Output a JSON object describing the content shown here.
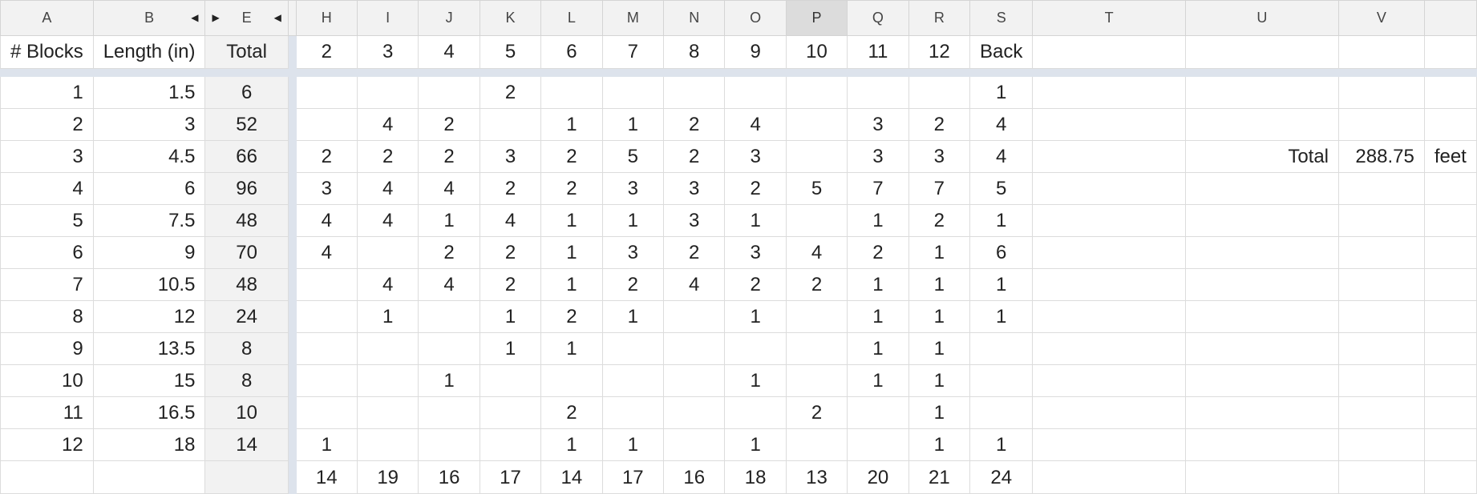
{
  "columns": [
    "A",
    "B",
    "E",
    "H",
    "I",
    "J",
    "K",
    "L",
    "M",
    "N",
    "O",
    "P",
    "Q",
    "R",
    "S",
    "T",
    "U",
    "V"
  ],
  "selected_column": "P",
  "hidden_markers": {
    "collapse_left": "◀",
    "expand_right": "▶"
  },
  "header_row": {
    "a": "# Blocks",
    "b": "Length (in)",
    "e": "Total",
    "cols": [
      "2",
      "3",
      "4",
      "5",
      "6",
      "7",
      "8",
      "9",
      "10",
      "11",
      "12",
      "Back"
    ]
  },
  "rows": [
    {
      "a": "1",
      "b": "1.5",
      "e": "6",
      "cols": [
        "",
        "",
        "",
        "2",
        "",
        "",
        "",
        "",
        "",
        "",
        "",
        "1"
      ]
    },
    {
      "a": "2",
      "b": "3",
      "e": "52",
      "cols": [
        "",
        "4",
        "2",
        "",
        "1",
        "1",
        "2",
        "4",
        "",
        "3",
        "2",
        "4"
      ]
    },
    {
      "a": "3",
      "b": "4.5",
      "e": "66",
      "cols": [
        "2",
        "2",
        "2",
        "3",
        "2",
        "5",
        "2",
        "3",
        "",
        "3",
        "3",
        "4"
      ]
    },
    {
      "a": "4",
      "b": "6",
      "e": "96",
      "cols": [
        "3",
        "4",
        "4",
        "2",
        "2",
        "3",
        "3",
        "2",
        "5",
        "7",
        "7",
        "5"
      ]
    },
    {
      "a": "5",
      "b": "7.5",
      "e": "48",
      "cols": [
        "4",
        "4",
        "1",
        "4",
        "1",
        "1",
        "3",
        "1",
        "",
        "1",
        "2",
        "1"
      ]
    },
    {
      "a": "6",
      "b": "9",
      "e": "70",
      "cols": [
        "4",
        "",
        "2",
        "2",
        "1",
        "3",
        "2",
        "3",
        "4",
        "2",
        "1",
        "6"
      ]
    },
    {
      "a": "7",
      "b": "10.5",
      "e": "48",
      "cols": [
        "",
        "4",
        "4",
        "2",
        "1",
        "2",
        "4",
        "2",
        "2",
        "1",
        "1",
        "1"
      ]
    },
    {
      "a": "8",
      "b": "12",
      "e": "24",
      "cols": [
        "",
        "1",
        "",
        "1",
        "2",
        "1",
        "",
        "1",
        "",
        "1",
        "1",
        "1"
      ]
    },
    {
      "a": "9",
      "b": "13.5",
      "e": "8",
      "cols": [
        "",
        "",
        "",
        "1",
        "1",
        "",
        "",
        "",
        "",
        "1",
        "1",
        ""
      ]
    },
    {
      "a": "10",
      "b": "15",
      "e": "8",
      "cols": [
        "",
        "",
        "1",
        "",
        "",
        "",
        "",
        "1",
        "",
        "1",
        "1",
        ""
      ]
    },
    {
      "a": "11",
      "b": "16.5",
      "e": "10",
      "cols": [
        "",
        "",
        "",
        "",
        "2",
        "",
        "",
        "",
        "2",
        "",
        "1",
        ""
      ]
    },
    {
      "a": "12",
      "b": "18",
      "e": "14",
      "cols": [
        "1",
        "",
        "",
        "",
        "1",
        "1",
        "",
        "1",
        "",
        "",
        "1",
        "1"
      ]
    }
  ],
  "totals_row": [
    "14",
    "19",
    "16",
    "17",
    "14",
    "17",
    "16",
    "18",
    "13",
    "20",
    "21",
    "24"
  ],
  "summary": {
    "label": "Total",
    "value": "288.75",
    "unit": "feet"
  }
}
